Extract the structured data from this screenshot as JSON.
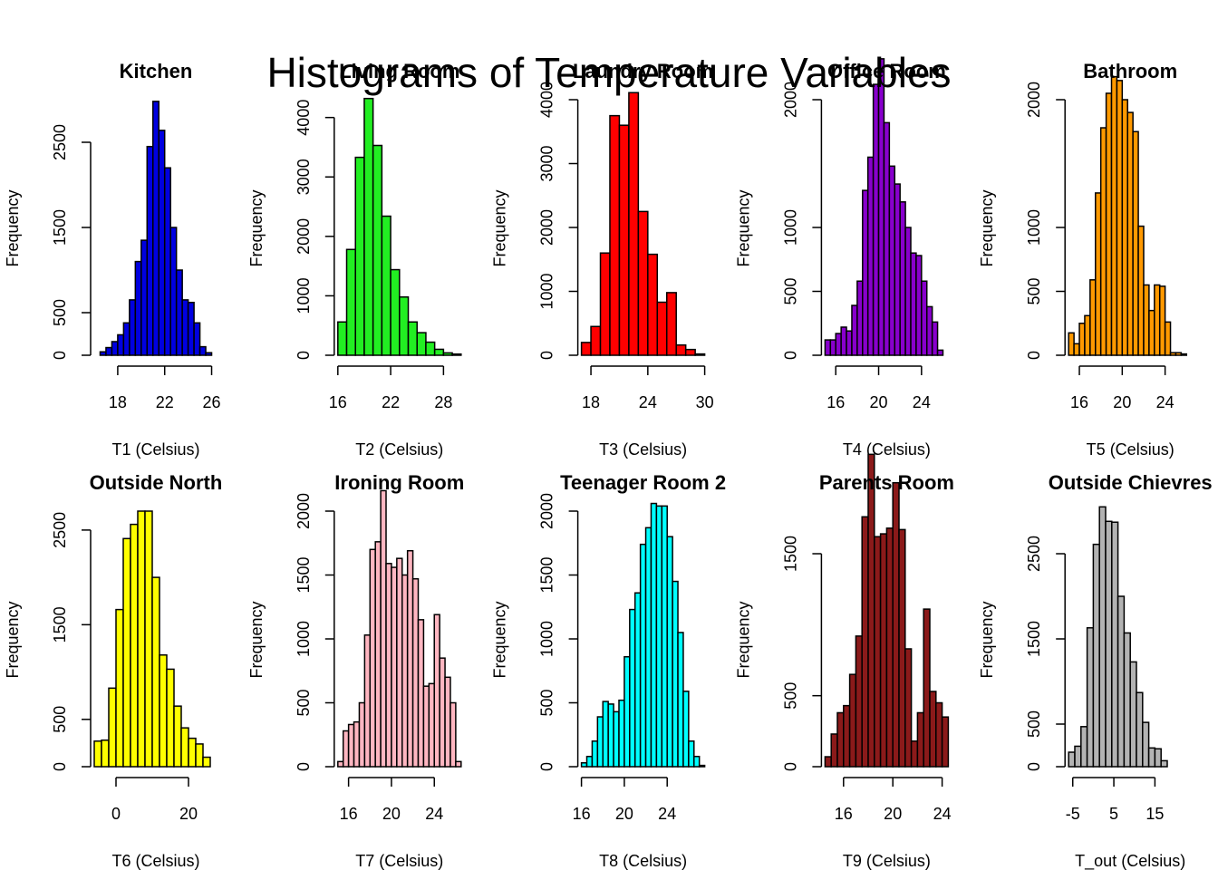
{
  "title": "Histograms of Temperature Variables",
  "chart_data": [
    {
      "type": "bar",
      "title": "Kitchen",
      "xlabel": "T1 (Celsius)",
      "ylabel": "Frequency",
      "color": "#0000e0",
      "x_range": [
        16,
        26.5
      ],
      "bin_start": 16.5,
      "bin_width": 0.5,
      "values": [
        40,
        90,
        160,
        240,
        380,
        650,
        1100,
        1350,
        2450,
        2980,
        2640,
        2200,
        1500,
        1000,
        650,
        620,
        380,
        100,
        30
      ],
      "x_ticks": [
        18,
        22,
        26
      ],
      "y_ticks": [
        0,
        500,
        1500,
        2500
      ],
      "y_axis_max": 3000
    },
    {
      "type": "bar",
      "title": "Living Room",
      "xlabel": "T2 (Celsius)",
      "ylabel": "Frequency",
      "color": "#22ee22",
      "x_range": [
        16,
        30
      ],
      "bin_start": 16,
      "bin_width": 1,
      "values": [
        560,
        1780,
        3330,
        4320,
        3530,
        2340,
        1440,
        980,
        560,
        380,
        220,
        100,
        40,
        20
      ],
      "x_ticks": [
        16,
        22,
        28
      ],
      "y_ticks": [
        0,
        1000,
        2000,
        3000,
        4000
      ],
      "y_axis_max": 4300
    },
    {
      "type": "bar",
      "title": "Laundry Room",
      "xlabel": "T3 (Celsius)",
      "ylabel": "Frequency",
      "color": "#ff0000",
      "x_range": [
        17,
        30
      ],
      "bin_start": 17,
      "bin_width": 1,
      "values": [
        200,
        450,
        1600,
        3750,
        3600,
        4110,
        2250,
        1580,
        830,
        980,
        160,
        90,
        20
      ],
      "x_ticks": [
        18,
        24,
        30
      ],
      "y_ticks": [
        0,
        1000,
        2000,
        3000,
        4000
      ],
      "y_axis_max": 4000
    },
    {
      "type": "bar",
      "title": "Office Room",
      "xlabel": "T4 (Celsius)",
      "ylabel": "Frequency",
      "color": "#8800cc",
      "x_range": [
        15,
        26.5
      ],
      "bin_start": 15,
      "bin_width": 0.5,
      "values": [
        120,
        120,
        170,
        220,
        190,
        390,
        580,
        1290,
        1550,
        2120,
        2320,
        1820,
        1480,
        1340,
        1200,
        1000,
        800,
        780,
        580,
        380,
        260,
        40
      ],
      "x_ticks": [
        16,
        20,
        24
      ],
      "y_ticks": [
        0,
        500,
        1000,
        2000
      ],
      "y_axis_max": 2000
    },
    {
      "type": "bar",
      "title": "Bathroom",
      "xlabel": "T5 (Celsius)",
      "ylabel": "Frequency",
      "color": "#ff9900",
      "x_range": [
        15,
        26.5
      ],
      "bin_start": 15,
      "bin_width": 0.5,
      "values": [
        175,
        90,
        250,
        310,
        590,
        1270,
        1780,
        2050,
        2180,
        2150,
        2000,
        1900,
        1750,
        1010,
        550,
        350,
        550,
        540,
        260,
        20,
        20,
        10
      ],
      "x_ticks": [
        16,
        20,
        24
      ],
      "y_ticks": [
        0,
        500,
        1000,
        2000
      ],
      "y_axis_max": 2000
    },
    {
      "type": "bar",
      "title": "Outside North",
      "xlabel": "T6 (Celsius)",
      "ylabel": "Frequency",
      "color": "#ffff00",
      "x_range": [
        -6,
        28
      ],
      "bin_start": -6,
      "bin_width": 2,
      "values": [
        270,
        280,
        830,
        1660,
        2410,
        2560,
        2700,
        2700,
        2000,
        1180,
        1030,
        640,
        410,
        300,
        240,
        100
      ],
      "x_ticks": [
        0,
        20
      ],
      "y_ticks": [
        0,
        500,
        1500,
        2500
      ],
      "y_axis_max": 2700
    },
    {
      "type": "bar",
      "title": "Ironing Room",
      "xlabel": "T7 (Celsius)",
      "ylabel": "Frequency",
      "color": "#ffb6c1",
      "x_range": [
        15,
        26.5
      ],
      "bin_start": 15,
      "bin_width": 0.5,
      "values": [
        40,
        280,
        330,
        350,
        500,
        1030,
        1700,
        1760,
        2160,
        1590,
        1560,
        1630,
        1500,
        1690,
        1470,
        1150,
        630,
        650,
        1190,
        850,
        700,
        500,
        40
      ],
      "x_ticks": [
        16,
        20,
        24
      ],
      "y_ticks": [
        0,
        500,
        1000,
        1500,
        2000
      ],
      "y_axis_max": 2000
    },
    {
      "type": "bar",
      "title": "Teenager Room 2",
      "xlabel": "T8 (Celsius)",
      "ylabel": "Frequency",
      "color": "#00ffff",
      "x_range": [
        16,
        27.5
      ],
      "bin_start": 16,
      "bin_width": 0.5,
      "values": [
        30,
        80,
        200,
        390,
        510,
        490,
        430,
        520,
        860,
        1230,
        1360,
        1740,
        1870,
        2060,
        2040,
        2040,
        1800,
        1450,
        1050,
        590,
        200,
        80,
        10
      ],
      "x_ticks": [
        16,
        20,
        24
      ],
      "y_ticks": [
        0,
        500,
        1000,
        1500,
        2000
      ],
      "y_axis_max": 2000
    },
    {
      "type": "bar",
      "title": "Parents Room",
      "xlabel": "T9 (Celsius)",
      "ylabel": "Frequency",
      "color": "#8b1a1a",
      "x_range": [
        14.5,
        24.5
      ],
      "bin_start": 14.5,
      "bin_width": 0.5,
      "values": [
        70,
        230,
        380,
        430,
        650,
        920,
        1760,
        2200,
        1620,
        1640,
        1680,
        2000,
        1670,
        830,
        180,
        380,
        1110,
        530,
        450,
        350
      ],
      "x_ticks": [
        16,
        20,
        24
      ],
      "y_ticks": [
        0,
        500,
        1500
      ],
      "y_axis_max": 1800
    },
    {
      "type": "bar",
      "title": "Outside Chievres",
      "xlabel": "T_out (Celsius)",
      "ylabel": "Frequency",
      "color": "#b3b3b3",
      "x_range": [
        -6,
        24
      ],
      "bin_start": -6,
      "bin_width": 1.5,
      "values": [
        170,
        240,
        470,
        1630,
        2610,
        3050,
        2880,
        2870,
        2000,
        1570,
        1230,
        870,
        520,
        220,
        210,
        70
      ],
      "x_ticks": [
        -5,
        5,
        15
      ],
      "y_ticks": [
        0,
        500,
        1500,
        2500
      ],
      "y_axis_max": 3000
    }
  ]
}
